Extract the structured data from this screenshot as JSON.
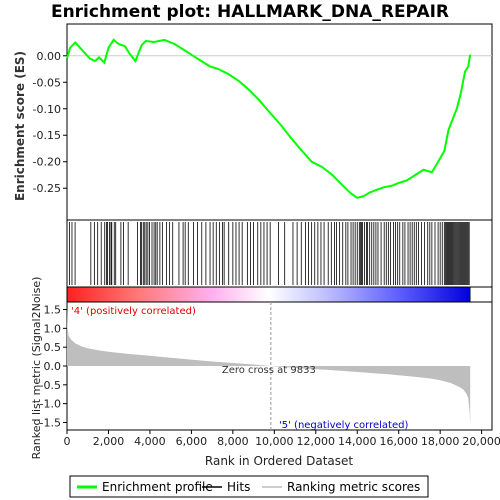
{
  "chart_data": {
    "type": "line",
    "title": "Enrichment plot: HALLMARK_DNA_REPAIR",
    "xlabel": "Rank in Ordered Dataset",
    "top_panel": {
      "ylabel": "Enrichment score (ES)",
      "ylim": [
        -0.31,
        0.06
      ],
      "yticks": [
        0.0,
        -0.05,
        -0.1,
        -0.15,
        -0.2,
        -0.25
      ],
      "ytick_labels": [
        "0.00",
        "-0.05",
        "-0.10",
        "-0.15",
        "-0.20",
        "-0.25"
      ],
      "series": [
        {
          "name": "Enrichment profile",
          "color": "#00ff00",
          "x": [
            0,
            150,
            400,
            700,
            1100,
            1350,
            1550,
            1800,
            2000,
            2250,
            2500,
            2800,
            3000,
            3300,
            3600,
            3800,
            4200,
            4700,
            5200,
            5600,
            6000,
            6400,
            6900,
            7300,
            7800,
            8300,
            8800,
            9300,
            9800,
            10300,
            10800,
            11300,
            11800,
            12300,
            12800,
            13300,
            13700,
            14000,
            14300,
            14600,
            15000,
            15300,
            15700,
            16000,
            16400,
            16800,
            17200,
            17600,
            17900,
            18200,
            18400,
            18600,
            18800,
            19000,
            19200,
            19350,
            19450
          ],
          "y": [
            -0.005,
            0.015,
            0.025,
            0.012,
            -0.005,
            -0.01,
            -0.003,
            -0.013,
            0.015,
            0.03,
            0.022,
            0.018,
            0.005,
            -0.01,
            0.02,
            0.028,
            0.026,
            0.03,
            0.022,
            0.012,
            0.002,
            -0.008,
            -0.02,
            -0.025,
            -0.035,
            -0.048,
            -0.065,
            -0.085,
            -0.108,
            -0.13,
            -0.155,
            -0.178,
            -0.2,
            -0.21,
            -0.225,
            -0.245,
            -0.26,
            -0.268,
            -0.265,
            -0.258,
            -0.252,
            -0.248,
            -0.245,
            -0.24,
            -0.235,
            -0.225,
            -0.215,
            -0.22,
            -0.2,
            -0.18,
            -0.14,
            -0.12,
            -0.1,
            -0.07,
            -0.03,
            -0.02,
            0.002
          ]
        }
      ]
    },
    "hits": [
      120,
      240,
      390,
      1150,
      1320,
      1480,
      1650,
      1820,
      1900,
      1950,
      2050,
      2120,
      2160,
      2280,
      2350,
      2600,
      2720,
      2950,
      3400,
      3550,
      3600,
      3680,
      3750,
      3820,
      3900,
      3980,
      4100,
      4200,
      4280,
      4350,
      4480,
      4600,
      4800,
      4950,
      5100,
      5400,
      5600,
      5700,
      5850,
      6100,
      6300,
      6500,
      6700,
      6900,
      7050,
      7200,
      7350,
      7500,
      7580,
      7800,
      8000,
      8150,
      8300,
      8450,
      8700,
      8850,
      9000,
      9200,
      9350,
      9500,
      9650,
      9800,
      10200,
      10500,
      10900,
      11100,
      11300,
      11500,
      11650,
      11800,
      11950,
      12100,
      12250,
      12400,
      12600,
      12750,
      12900,
      13000,
      13150,
      13300,
      13450,
      13550,
      13700,
      13800,
      13900,
      14000,
      14100,
      14150,
      14200,
      14250,
      14350,
      14450,
      14500,
      14600,
      14700,
      14800,
      14900,
      15000,
      15150,
      15300,
      15400,
      15500,
      15600,
      15750,
      15850,
      15950,
      16050,
      16200,
      16300,
      16450,
      16550,
      16650,
      16750,
      16850,
      16950,
      17100,
      17250,
      17400,
      17500,
      17600,
      17750,
      17900,
      18000,
      18100,
      18200,
      18250,
      18300,
      18350,
      18400,
      18450,
      18500,
      18550,
      18600,
      18650,
      18700,
      18750,
      18800,
      18850,
      18900,
      18950,
      19000,
      19050,
      19100,
      19150,
      19200,
      19250,
      19300,
      19350,
      19400
    ],
    "ranked_metric": {
      "ylabel": "Ranked list metric (Signal2Noise)",
      "ylim": [
        -1.7,
        1.7
      ],
      "yticks": [
        1.5,
        1.0,
        0.5,
        0.0,
        -0.5,
        -1.0,
        -1.5
      ],
      "ytick_labels": [
        "1.5",
        "1.0",
        "0.5",
        "0.0",
        "-0.5",
        "-1.0",
        "-1.5"
      ],
      "x": [
        0,
        30,
        80,
        200,
        400,
        700,
        1000,
        1500,
        2000,
        3000,
        4000,
        5000,
        6000,
        7000,
        8000,
        9000,
        9833,
        10500,
        11500,
        12500,
        13500,
        14500,
        15500,
        16500,
        17500,
        18000,
        18500,
        18900,
        19100,
        19250,
        19350,
        19420,
        19450
      ],
      "y": [
        1.55,
        1.0,
        0.8,
        0.7,
        0.6,
        0.52,
        0.47,
        0.42,
        0.38,
        0.32,
        0.27,
        0.22,
        0.17,
        0.12,
        0.08,
        0.04,
        0.0,
        -0.03,
        -0.07,
        -0.1,
        -0.14,
        -0.18,
        -0.22,
        -0.27,
        -0.33,
        -0.38,
        -0.45,
        -0.55,
        -0.62,
        -0.72,
        -0.85,
        -1.2,
        -1.6
      ],
      "fill_color": "#bebebe"
    },
    "xlim": [
      0,
      20500
    ],
    "xticks": [
      0,
      2000,
      4000,
      6000,
      8000,
      10000,
      12000,
      14000,
      16000,
      18000,
      20000
    ],
    "xtick_labels": [
      "0",
      "2,000",
      "4,000",
      "6,000",
      "8,000",
      "10,000",
      "12,000",
      "14,000",
      "16,000",
      "18,000",
      "20,000"
    ],
    "n_genes": 19450,
    "zero_cross": 9833,
    "annotations": {
      "positive": "'4' (positively correlated)",
      "negative": "'5' (negatively correlated)",
      "zero_cross": "Zero cross at 9833"
    },
    "colors": {
      "es_line": "#00ff00",
      "hits": "#000000",
      "metric_fill": "#bebebe",
      "positive_label": "#dd0000",
      "negative_label": "#0000cc",
      "heat_positive": "#ff0000",
      "heat_neutral": "#ffffff",
      "heat_negative": "#0000ff"
    },
    "legend": {
      "position": "bottom",
      "items": [
        {
          "label": "Enrichment profile",
          "color": "#00ff00"
        },
        {
          "label": "Hits",
          "color": "#000000"
        },
        {
          "label": "Ranking metric scores",
          "color": "#bebebe"
        }
      ]
    }
  }
}
